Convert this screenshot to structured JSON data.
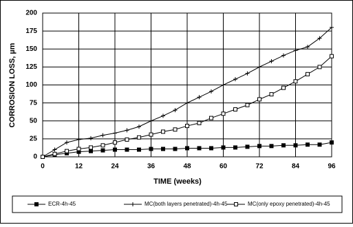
{
  "chart_data": {
    "type": "line",
    "xlabel": "TIME (weeks)",
    "ylabel": "CORROSION LOSS, µm",
    "x": [
      0,
      4,
      8,
      12,
      16,
      20,
      24,
      28,
      32,
      36,
      40,
      44,
      48,
      52,
      56,
      60,
      64,
      68,
      72,
      76,
      80,
      84,
      88,
      92,
      96
    ],
    "series": [
      {
        "name": "ECR-4h-45",
        "color": "#000000",
        "marker": "filled-square",
        "values": [
          0,
          3,
          5,
          7,
          8,
          9,
          10,
          10,
          10,
          11,
          11,
          11,
          12,
          12,
          12,
          13,
          13,
          14,
          15,
          15,
          16,
          16,
          17,
          17,
          20
        ]
      },
      {
        "name": "MC(both layers penetrated)-4h-45",
        "color": "#000000",
        "marker": "plus",
        "values": [
          0,
          10,
          20,
          24,
          26,
          30,
          33,
          37,
          42,
          50,
          57,
          65,
          75,
          83,
          91,
          100,
          108,
          116,
          125,
          133,
          141,
          148,
          153,
          165,
          180
        ]
      },
      {
        "name": "MC(only epoxy penetrated)-4h-45",
        "color": "#000000",
        "marker": "open-square",
        "values": [
          0,
          4,
          8,
          11,
          13,
          16,
          20,
          24,
          27,
          31,
          35,
          38,
          43,
          47,
          54,
          60,
          66,
          72,
          80,
          87,
          96,
          105,
          115,
          125,
          140
        ]
      }
    ],
    "xlim": [
      0,
      96
    ],
    "xticks": [
      0,
      12,
      24,
      36,
      48,
      60,
      72,
      84,
      96
    ],
    "ylim": [
      0,
      200
    ],
    "yticks": [
      0,
      25,
      50,
      75,
      100,
      125,
      150,
      175,
      200
    ],
    "grid": true,
    "legend": "bottom"
  }
}
